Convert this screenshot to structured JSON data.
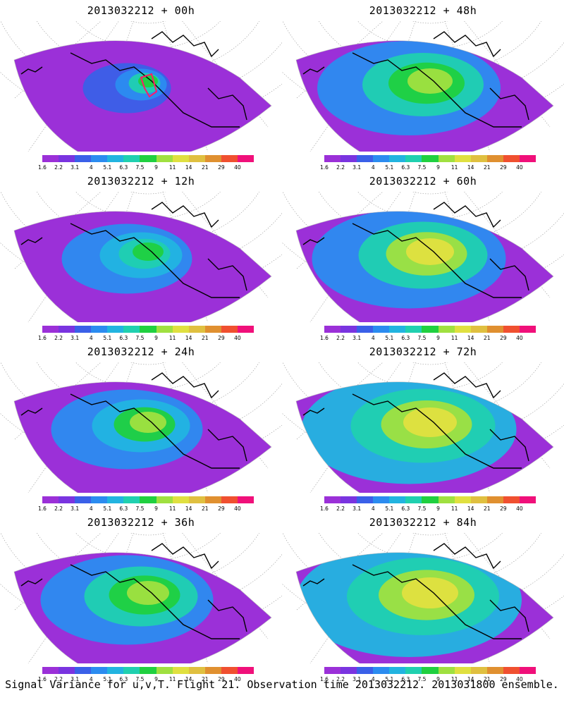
{
  "panels": [
    {
      "title": "2013032212 + 00h",
      "intensity": 0.15,
      "flight_track": true
    },
    {
      "title": "2013032212 + 48h",
      "intensity": 0.6,
      "flight_track": false
    },
    {
      "title": "2013032212 + 12h",
      "intensity": 0.35,
      "flight_track": false
    },
    {
      "title": "2013032212 + 60h",
      "intensity": 0.65,
      "flight_track": false
    },
    {
      "title": "2013032212 + 24h",
      "intensity": 0.45,
      "flight_track": false
    },
    {
      "title": "2013032212 + 72h",
      "intensity": 0.75,
      "flight_track": false
    },
    {
      "title": "2013032212 + 36h",
      "intensity": 0.55,
      "flight_track": false
    },
    {
      "title": "2013032212 + 84h",
      "intensity": 0.8,
      "flight_track": false
    }
  ],
  "colorbar": {
    "labels": [
      "1.6",
      "2.2",
      "3.1",
      "4",
      "5.1",
      "6.3",
      "7.5",
      "9",
      "11",
      "14",
      "21",
      "29",
      "40"
    ],
    "colors": [
      "#9b30d8",
      "#7a34e0",
      "#3a60e8",
      "#2b8cf0",
      "#22b4e0",
      "#20d0b0",
      "#20d040",
      "#a0e040",
      "#e0e040",
      "#e0c040",
      "#e09030",
      "#f05030",
      "#f0107a"
    ]
  },
  "footer": "Signal Variance for u,v,T. Flight 21. Observation time 2013032212. 2013031800 ensemble.",
  "colors": {
    "land": "#000000",
    "grid": "#999999",
    "track": "#ff1a6a"
  }
}
